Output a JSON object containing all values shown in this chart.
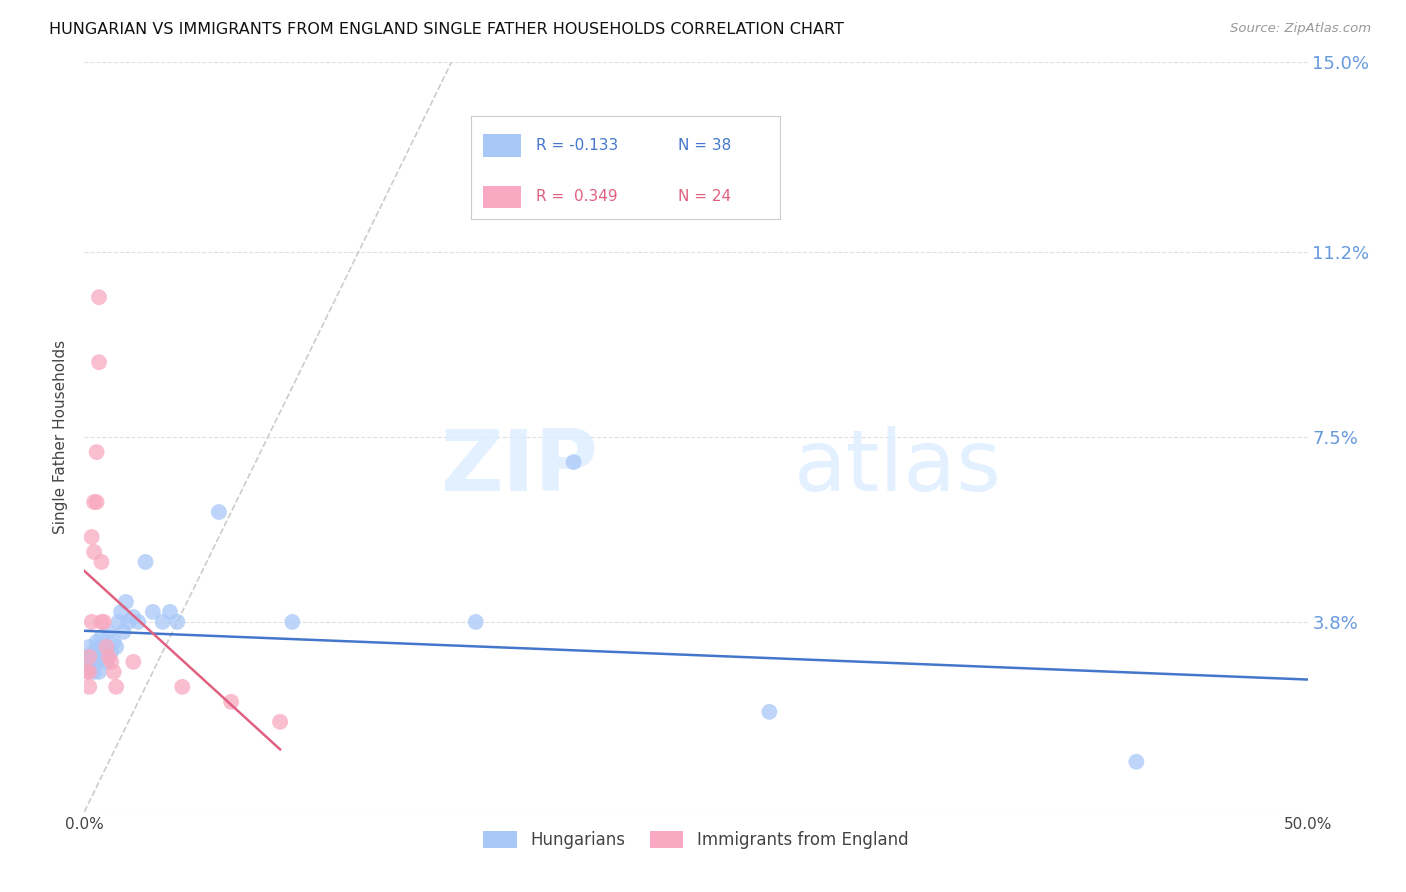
{
  "title": "HUNGARIAN VS IMMIGRANTS FROM ENGLAND SINGLE FATHER HOUSEHOLDS CORRELATION CHART",
  "source": "Source: ZipAtlas.com",
  "ylabel": "Single Father Households",
  "xlim": [
    0.0,
    0.5
  ],
  "ylim": [
    0.0,
    0.15
  ],
  "ytick_vals": [
    0.0,
    0.038,
    0.075,
    0.112,
    0.15
  ],
  "ytick_labels_right": [
    "",
    "3.8%",
    "7.5%",
    "11.2%",
    "15.0%"
  ],
  "xtick_vals": [
    0.0,
    0.1,
    0.2,
    0.3,
    0.4,
    0.5
  ],
  "xtick_labels": [
    "0.0%",
    "",
    "",
    "",
    "",
    "50.0%"
  ],
  "grid_color": "#e0e0e0",
  "diagonal_color": "#cccccc",
  "hungarian_color": "#a8c8f8",
  "england_color": "#f8a8c0",
  "hungarian_line_color": "#4477cc",
  "england_line_color": "#e06080",
  "right_axis_color": "#6699dd",
  "legend_r_hun": "R = -0.133",
  "legend_n_hun": "N = 38",
  "legend_r_eng": "R =  0.349",
  "legend_n_eng": "N = 24",
  "hungarian_points": [
    [
      0.001,
      0.031
    ],
    [
      0.001,
      0.029
    ],
    [
      0.002,
      0.033
    ],
    [
      0.002,
      0.03
    ],
    [
      0.003,
      0.031
    ],
    [
      0.003,
      0.029
    ],
    [
      0.004,
      0.032
    ],
    [
      0.004,
      0.028
    ],
    [
      0.005,
      0.034
    ],
    [
      0.005,
      0.03
    ],
    [
      0.006,
      0.033
    ],
    [
      0.006,
      0.028
    ],
    [
      0.007,
      0.035
    ],
    [
      0.007,
      0.031
    ],
    [
      0.008,
      0.033
    ],
    [
      0.009,
      0.03
    ],
    [
      0.01,
      0.036
    ],
    [
      0.011,
      0.032
    ],
    [
      0.012,
      0.034
    ],
    [
      0.013,
      0.033
    ],
    [
      0.014,
      0.038
    ],
    [
      0.015,
      0.04
    ],
    [
      0.016,
      0.036
    ],
    [
      0.017,
      0.042
    ],
    [
      0.018,
      0.038
    ],
    [
      0.02,
      0.039
    ],
    [
      0.022,
      0.038
    ],
    [
      0.025,
      0.05
    ],
    [
      0.028,
      0.04
    ],
    [
      0.032,
      0.038
    ],
    [
      0.035,
      0.04
    ],
    [
      0.038,
      0.038
    ],
    [
      0.055,
      0.06
    ],
    [
      0.085,
      0.038
    ],
    [
      0.16,
      0.038
    ],
    [
      0.2,
      0.07
    ],
    [
      0.28,
      0.02
    ],
    [
      0.43,
      0.01
    ]
  ],
  "england_points": [
    [
      0.001,
      0.028
    ],
    [
      0.002,
      0.028
    ],
    [
      0.002,
      0.031
    ],
    [
      0.002,
      0.025
    ],
    [
      0.003,
      0.055
    ],
    [
      0.003,
      0.038
    ],
    [
      0.004,
      0.062
    ],
    [
      0.004,
      0.052
    ],
    [
      0.005,
      0.072
    ],
    [
      0.005,
      0.062
    ],
    [
      0.006,
      0.103
    ],
    [
      0.006,
      0.09
    ],
    [
      0.007,
      0.05
    ],
    [
      0.007,
      0.038
    ],
    [
      0.008,
      0.038
    ],
    [
      0.009,
      0.033
    ],
    [
      0.01,
      0.031
    ],
    [
      0.011,
      0.03
    ],
    [
      0.012,
      0.028
    ],
    [
      0.013,
      0.025
    ],
    [
      0.02,
      0.03
    ],
    [
      0.04,
      0.025
    ],
    [
      0.06,
      0.022
    ],
    [
      0.08,
      0.018
    ]
  ]
}
